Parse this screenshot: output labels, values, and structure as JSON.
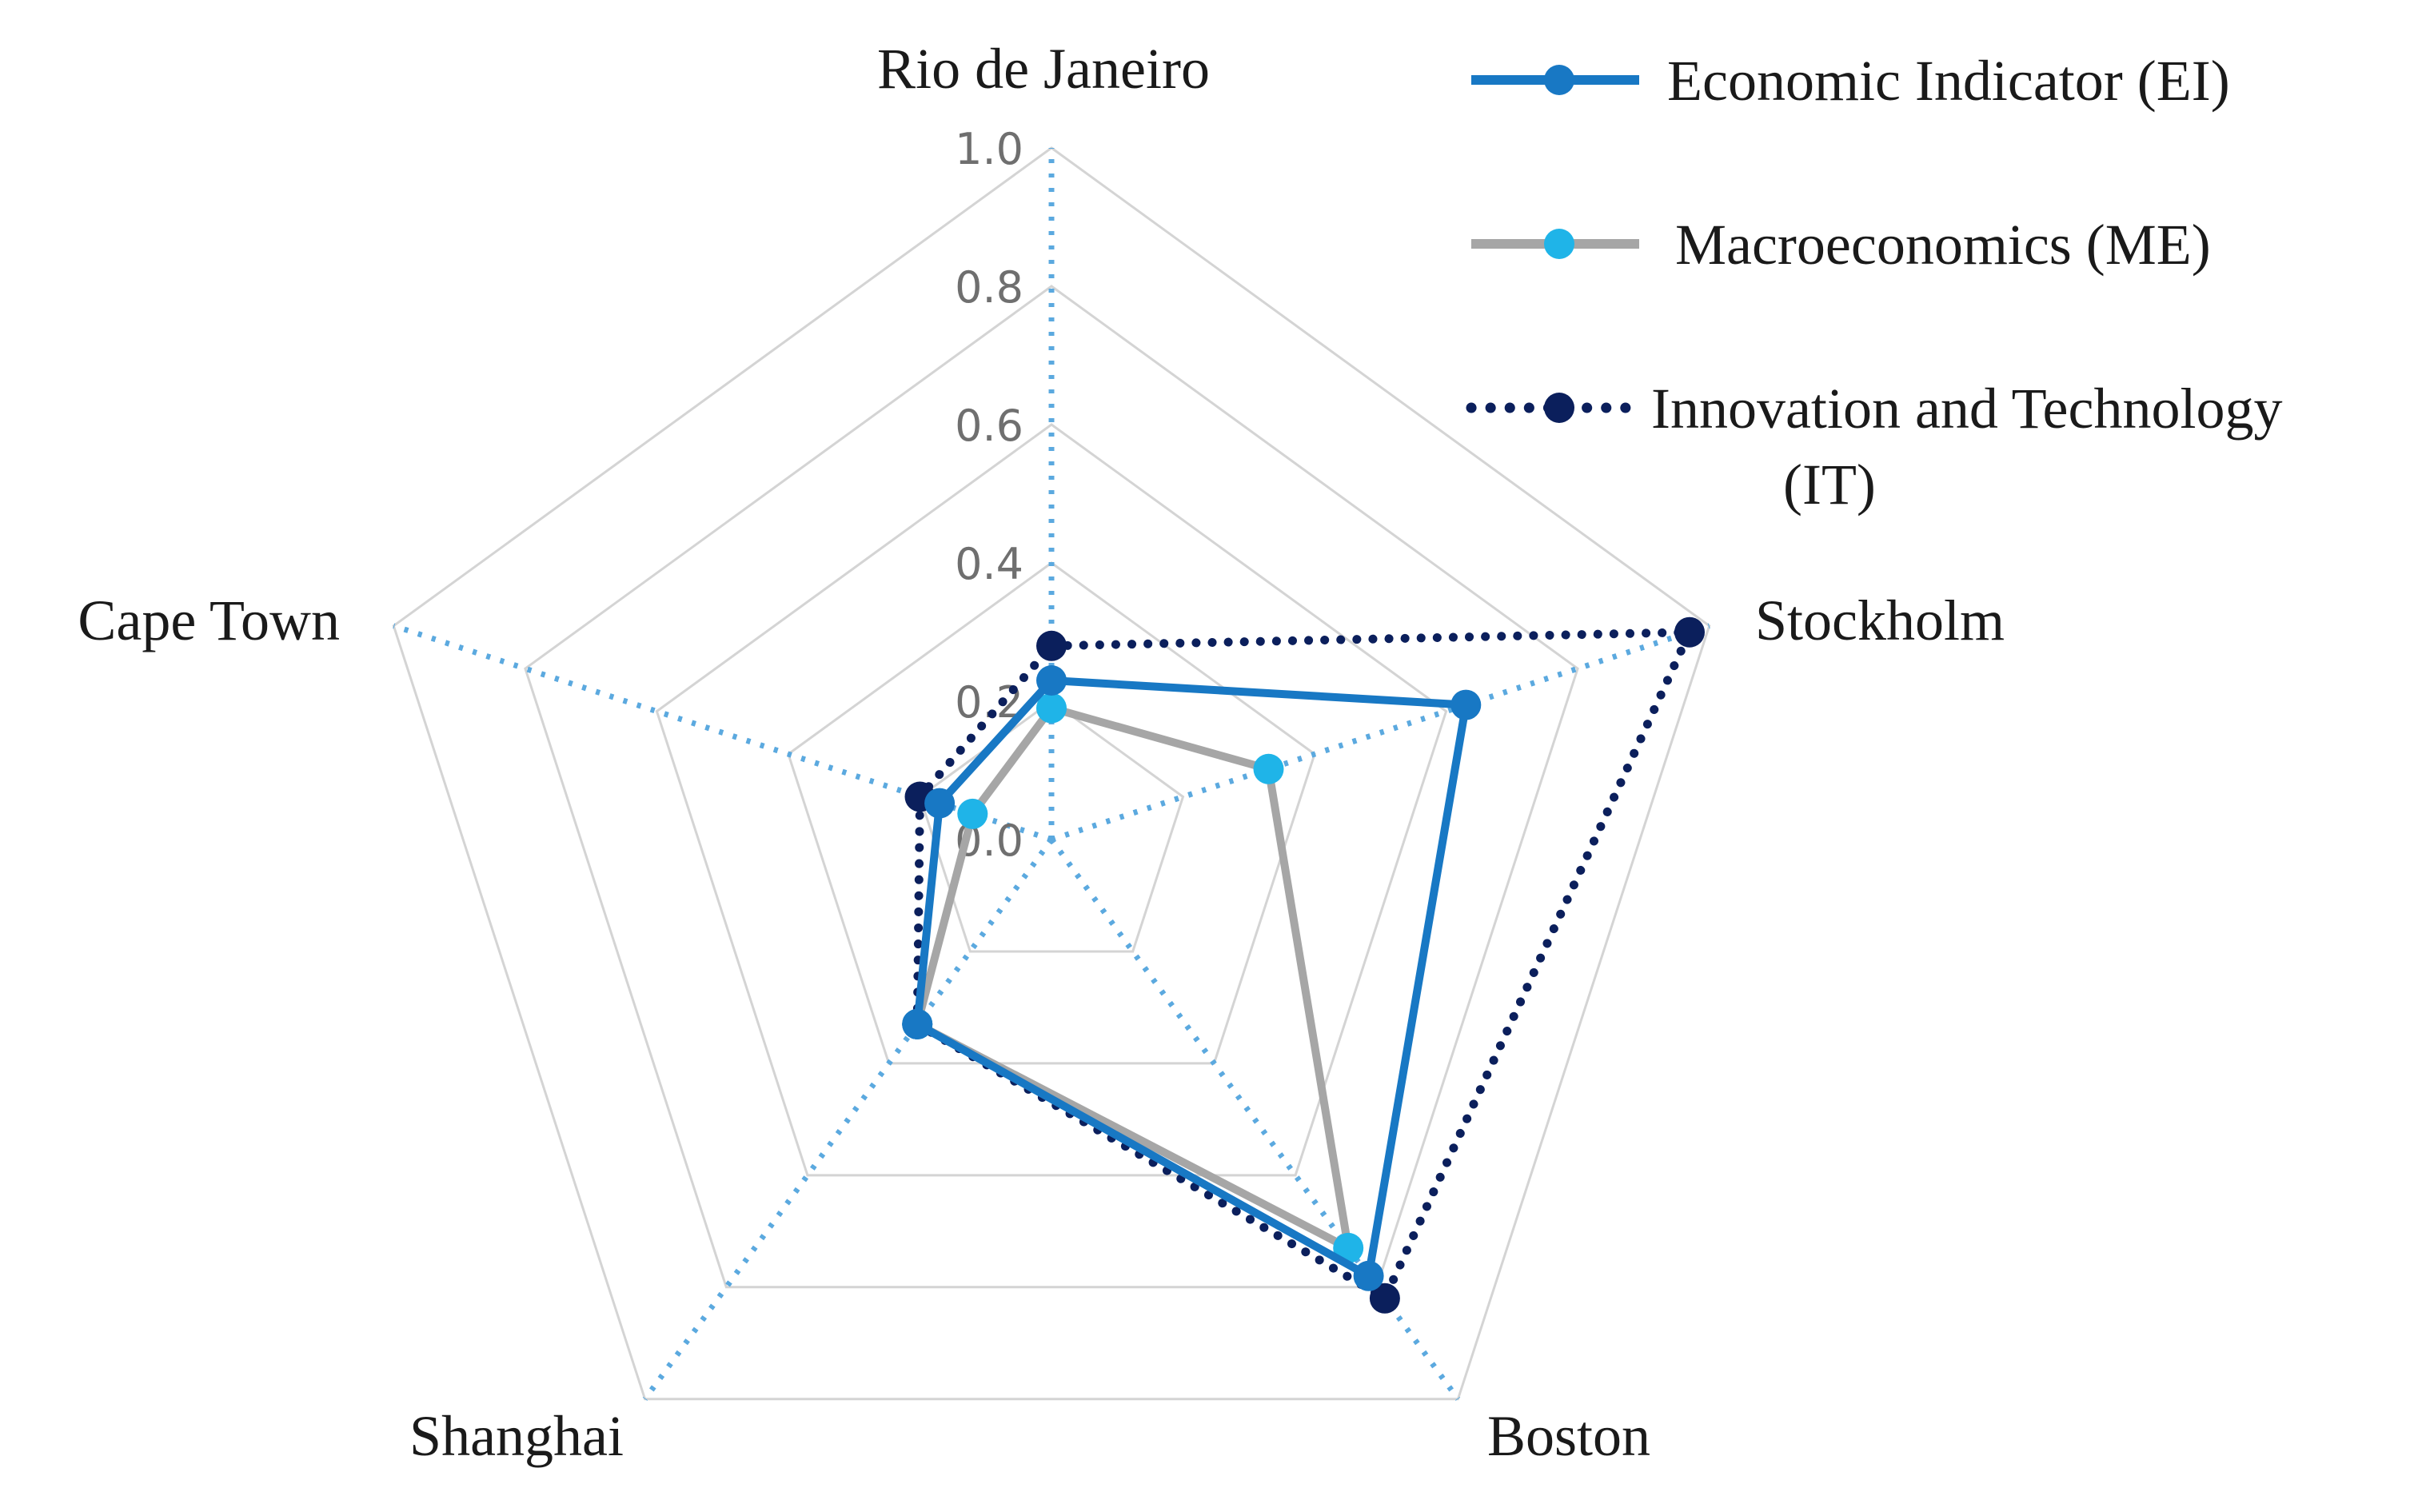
{
  "chart_data": {
    "type": "radar",
    "categories": [
      "Rio de Janeiro",
      "Stockholm",
      "Boston",
      "Shanghai",
      "Cape Town"
    ],
    "rlim": [
      0,
      1.0
    ],
    "ticks": [
      "0.0",
      "0.2",
      "0.4",
      "0.6",
      "0.8",
      "1.0"
    ],
    "tick_values": [
      0,
      0.2,
      0.4,
      0.6,
      0.8,
      1.0
    ],
    "grid": true,
    "legend_position": "top-right",
    "series": [
      {
        "name": "Economic Indicator (EI)",
        "values": [
          0.23,
          0.63,
          0.78,
          0.33,
          0.17
        ],
        "line_color": "#1878c4",
        "marker_color": "#1878c4",
        "line_style": "solid"
      },
      {
        "name": "Macroeconomics (ME)",
        "values": [
          0.19,
          0.33,
          0.73,
          0.33,
          0.12
        ],
        "line_color": "#a6a6a6",
        "marker_color": "#1fb4e8",
        "line_style": "solid"
      },
      {
        "name": "Innovation and Technology (IT)",
        "name_lines": [
          "Innovation and Technology",
          "(IT)"
        ],
        "values": [
          0.28,
          0.97,
          0.82,
          0.33,
          0.2
        ],
        "line_color": "#0b1f5c",
        "marker_color": "#0b1f5c",
        "line_style": "dotted"
      }
    ]
  }
}
